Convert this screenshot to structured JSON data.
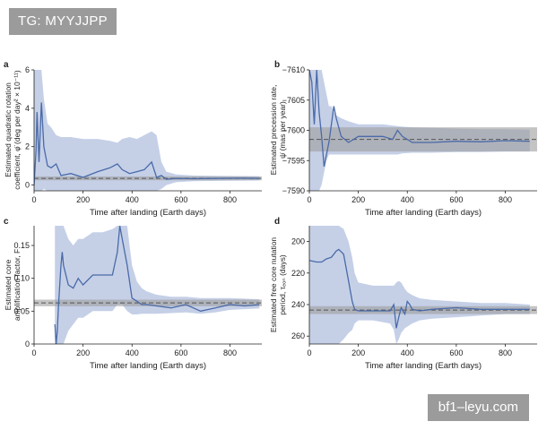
{
  "overlay": {
    "top_tag": "TG: MYYJJPP",
    "bottom_tag": "bf1–leyu.com"
  },
  "colors": {
    "band": "#c5d0e7",
    "line": "#4a6aa8",
    "estimate_band": "#9c9c9c",
    "estimate_line": "#555555",
    "axis": "#222222"
  },
  "chart_data": [
    {
      "panel": "a",
      "type": "line",
      "xlabel": "Time after landing (Earth days)",
      "ylabel_lines": [
        "Estimated quadratic rotation",
        "coefficient, φ̈ (deg per day² × 10⁻¹¹)"
      ],
      "xlim": [
        0,
        930
      ],
      "ylim": [
        -0.3,
        6
      ],
      "xticks": [
        0,
        200,
        400,
        600,
        800
      ],
      "yticks": [
        0,
        2,
        4,
        6
      ],
      "estimate": {
        "value": 0.35,
        "low": 0.25,
        "high": 0.45
      },
      "x": [
        0,
        8,
        12,
        20,
        30,
        40,
        55,
        70,
        90,
        110,
        150,
        200,
        260,
        310,
        340,
        360,
        390,
        420,
        450,
        480,
        500,
        520,
        540,
        580,
        650,
        750,
        850,
        920
      ],
      "y": [
        0,
        1.8,
        3.8,
        1.2,
        4.3,
        2.0,
        1.0,
        0.9,
        1.1,
        0.5,
        0.6,
        0.4,
        0.7,
        0.9,
        1.1,
        0.8,
        0.6,
        0.7,
        0.8,
        1.2,
        0.4,
        0.5,
        0.3,
        0.35,
        0.33,
        0.35,
        0.36,
        0.35
      ],
      "band_low": [
        -0.3,
        -0.3,
        -0.3,
        -0.3,
        -0.3,
        -0.2,
        -0.3,
        -0.3,
        -0.3,
        -0.3,
        -0.3,
        -0.3,
        -0.3,
        -0.3,
        -0.3,
        -0.3,
        -0.3,
        -0.3,
        -0.3,
        -0.3,
        -0.3,
        -0.2,
        0.0,
        0.15,
        0.2,
        0.22,
        0.23,
        0.24
      ],
      "band_high": [
        6.0,
        6.0,
        6.0,
        6.0,
        6.0,
        4.5,
        3.2,
        3.0,
        2.6,
        2.5,
        2.5,
        2.4,
        2.4,
        2.3,
        2.2,
        2.4,
        2.5,
        2.4,
        2.6,
        2.8,
        2.6,
        1.2,
        0.7,
        0.55,
        0.5,
        0.48,
        0.47,
        0.46
      ]
    },
    {
      "panel": "b",
      "type": "line",
      "xlabel": "Time after landing (Earth days)",
      "ylabel_lines": [
        "Estimated precession rate,",
        "ψ̇ (mas per year)"
      ],
      "xlim": [
        0,
        930
      ],
      "ylim": [
        -7610,
        -7590
      ],
      "yreverse": true,
      "xticks": [
        0,
        200,
        400,
        600,
        800
      ],
      "yticks": [
        -7590,
        -7595,
        -7600,
        -7605,
        -7610
      ],
      "estimate": {
        "value": -7598.5,
        "low": -7600.5,
        "high": -7596.5
      },
      "x": [
        0,
        10,
        20,
        30,
        40,
        50,
        60,
        70,
        80,
        90,
        100,
        110,
        130,
        160,
        200,
        300,
        340,
        360,
        380,
        420,
        500,
        600,
        700,
        800,
        900
      ],
      "y": [
        -7610,
        -7608,
        -7601,
        -7610,
        -7603,
        -7599,
        -7594,
        -7596,
        -7598,
        -7601,
        -7604,
        -7602,
        -7599,
        -7598,
        -7599,
        -7599,
        -7598.5,
        -7600,
        -7599,
        -7598,
        -7598,
        -7598.2,
        -7598.1,
        -7598.3,
        -7598.2
      ],
      "band_low": [
        -7610,
        -7610,
        -7610,
        -7610,
        -7610,
        -7610,
        -7608,
        -7606,
        -7604,
        -7604,
        -7603,
        -7602.5,
        -7602,
        -7601.5,
        -7601,
        -7601,
        -7600.8,
        -7600.7,
        -7600.6,
        -7600.5,
        -7600.4,
        -7600.3,
        -7600.2,
        -7600.2,
        -7600.1
      ],
      "band_high": [
        -7590,
        -7590,
        -7590,
        -7590,
        -7590,
        -7591,
        -7593,
        -7595,
        -7596,
        -7596,
        -7596,
        -7596,
        -7596,
        -7596,
        -7596,
        -7596,
        -7596,
        -7596,
        -7596.2,
        -7596.3,
        -7596.3,
        -7596.4,
        -7596.4,
        -7596.5,
        -7596.5
      ]
    },
    {
      "panel": "c",
      "type": "line",
      "xlabel": "Time after landing (Earth days)",
      "ylabel_lines": [
        "Estimated core",
        "amplification factor, F"
      ],
      "xlim": [
        0,
        930
      ],
      "ylim": [
        0,
        0.18
      ],
      "xticks": [
        0,
        200,
        400,
        600,
        800
      ],
      "yticks": [
        0.0,
        0.05,
        0.1,
        0.15
      ],
      "yticklabels": [
        "0",
        "0.05",
        "0.10",
        "0.15"
      ],
      "estimate": {
        "value": 0.0625,
        "low": 0.0575,
        "high": 0.0675
      },
      "x": [
        85,
        90,
        95,
        100,
        110,
        115,
        120,
        140,
        160,
        180,
        200,
        240,
        280,
        320,
        340,
        350,
        360,
        380,
        400,
        420,
        440,
        460,
        500,
        560,
        620,
        680,
        740,
        800,
        860,
        920
      ],
      "y": [
        0.03,
        0.0,
        0.02,
        0.06,
        0.12,
        0.14,
        0.12,
        0.09,
        0.085,
        0.1,
        0.09,
        0.105,
        0.105,
        0.105,
        0.14,
        0.18,
        0.16,
        0.12,
        0.07,
        0.065,
        0.06,
        0.06,
        0.058,
        0.055,
        0.06,
        0.05,
        0.055,
        0.06,
        0.058,
        0.06
      ],
      "band_low": [
        0.0,
        0.0,
        0.0,
        0.0,
        0.0,
        0.0,
        0.0,
        0.02,
        0.03,
        0.04,
        0.04,
        0.05,
        0.05,
        0.05,
        0.06,
        0.06,
        0.06,
        0.05,
        0.045,
        0.045,
        0.046,
        0.046,
        0.046,
        0.047,
        0.048,
        0.046,
        0.048,
        0.052,
        0.053,
        0.054
      ],
      "band_high": [
        0.18,
        0.18,
        0.18,
        0.18,
        0.18,
        0.18,
        0.18,
        0.16,
        0.15,
        0.16,
        0.16,
        0.17,
        0.17,
        0.175,
        0.18,
        0.18,
        0.18,
        0.18,
        0.12,
        0.095,
        0.085,
        0.08,
        0.075,
        0.072,
        0.072,
        0.07,
        0.07,
        0.07,
        0.069,
        0.068
      ]
    },
    {
      "panel": "d",
      "type": "line",
      "xlabel": "Time after landing (Earth days)",
      "ylabel_lines": [
        "Estimated free core nutation",
        "period, τₑₒₙ (days)"
      ],
      "xlim": [
        0,
        930
      ],
      "ylim": [
        265,
        190
      ],
      "xticks": [
        0,
        200,
        400,
        600,
        800
      ],
      "yticks": [
        200,
        220,
        240,
        260
      ],
      "estimate": {
        "value": 243.5,
        "low": 241,
        "high": 246
      },
      "x": [
        0,
        30,
        50,
        70,
        90,
        110,
        120,
        140,
        160,
        175,
        185,
        200,
        260,
        330,
        345,
        355,
        365,
        375,
        390,
        400,
        410,
        420,
        450,
        500,
        600,
        700,
        800,
        900
      ],
      "y": [
        212,
        213,
        213,
        211,
        210,
        206,
        205,
        208,
        225,
        238,
        243,
        244,
        244,
        244,
        240,
        255,
        248,
        242,
        246,
        238,
        240,
        243,
        244,
        243,
        242,
        243,
        243,
        243
      ],
      "band_low": [
        190,
        190,
        190,
        190,
        190,
        190,
        190,
        192,
        200,
        210,
        220,
        226,
        228,
        228,
        228,
        226,
        225,
        226,
        230,
        232,
        233,
        234,
        236,
        237,
        238,
        239,
        239,
        240
      ],
      "band_high": [
        265,
        265,
        265,
        265,
        265,
        265,
        265,
        262,
        258,
        256,
        252,
        250,
        250,
        252,
        256,
        265,
        262,
        258,
        255,
        254,
        253,
        252,
        250,
        249,
        248,
        247,
        246,
        246
      ]
    }
  ]
}
